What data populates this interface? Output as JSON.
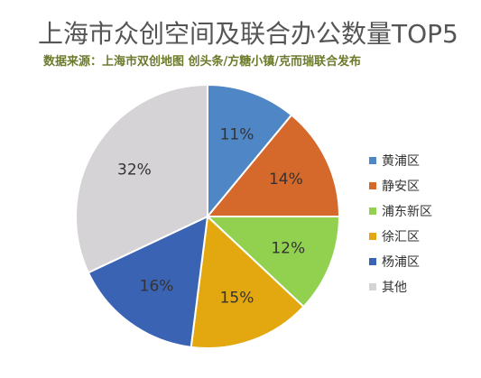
{
  "chart_data": {
    "type": "pie",
    "title": "上海市众创空间及联合办公数量TOP5",
    "subtitle": "数据来源：上海市双创地图  创头条/方糖小镇/克而瑞联合发布",
    "categories": [
      "黄浦区",
      "静安区",
      "浦东新区",
      "徐汇区",
      "杨浦区",
      "其他"
    ],
    "values": [
      11,
      14,
      12,
      15,
      16,
      32
    ],
    "labels": [
      "11%",
      "14%",
      "12%",
      "15%",
      "16%",
      "32%"
    ],
    "colors": [
      "#4f86c6",
      "#d4692b",
      "#92d050",
      "#e3a80f",
      "#3b63b3",
      "#d5d3d6"
    ],
    "legend_position": "right"
  }
}
